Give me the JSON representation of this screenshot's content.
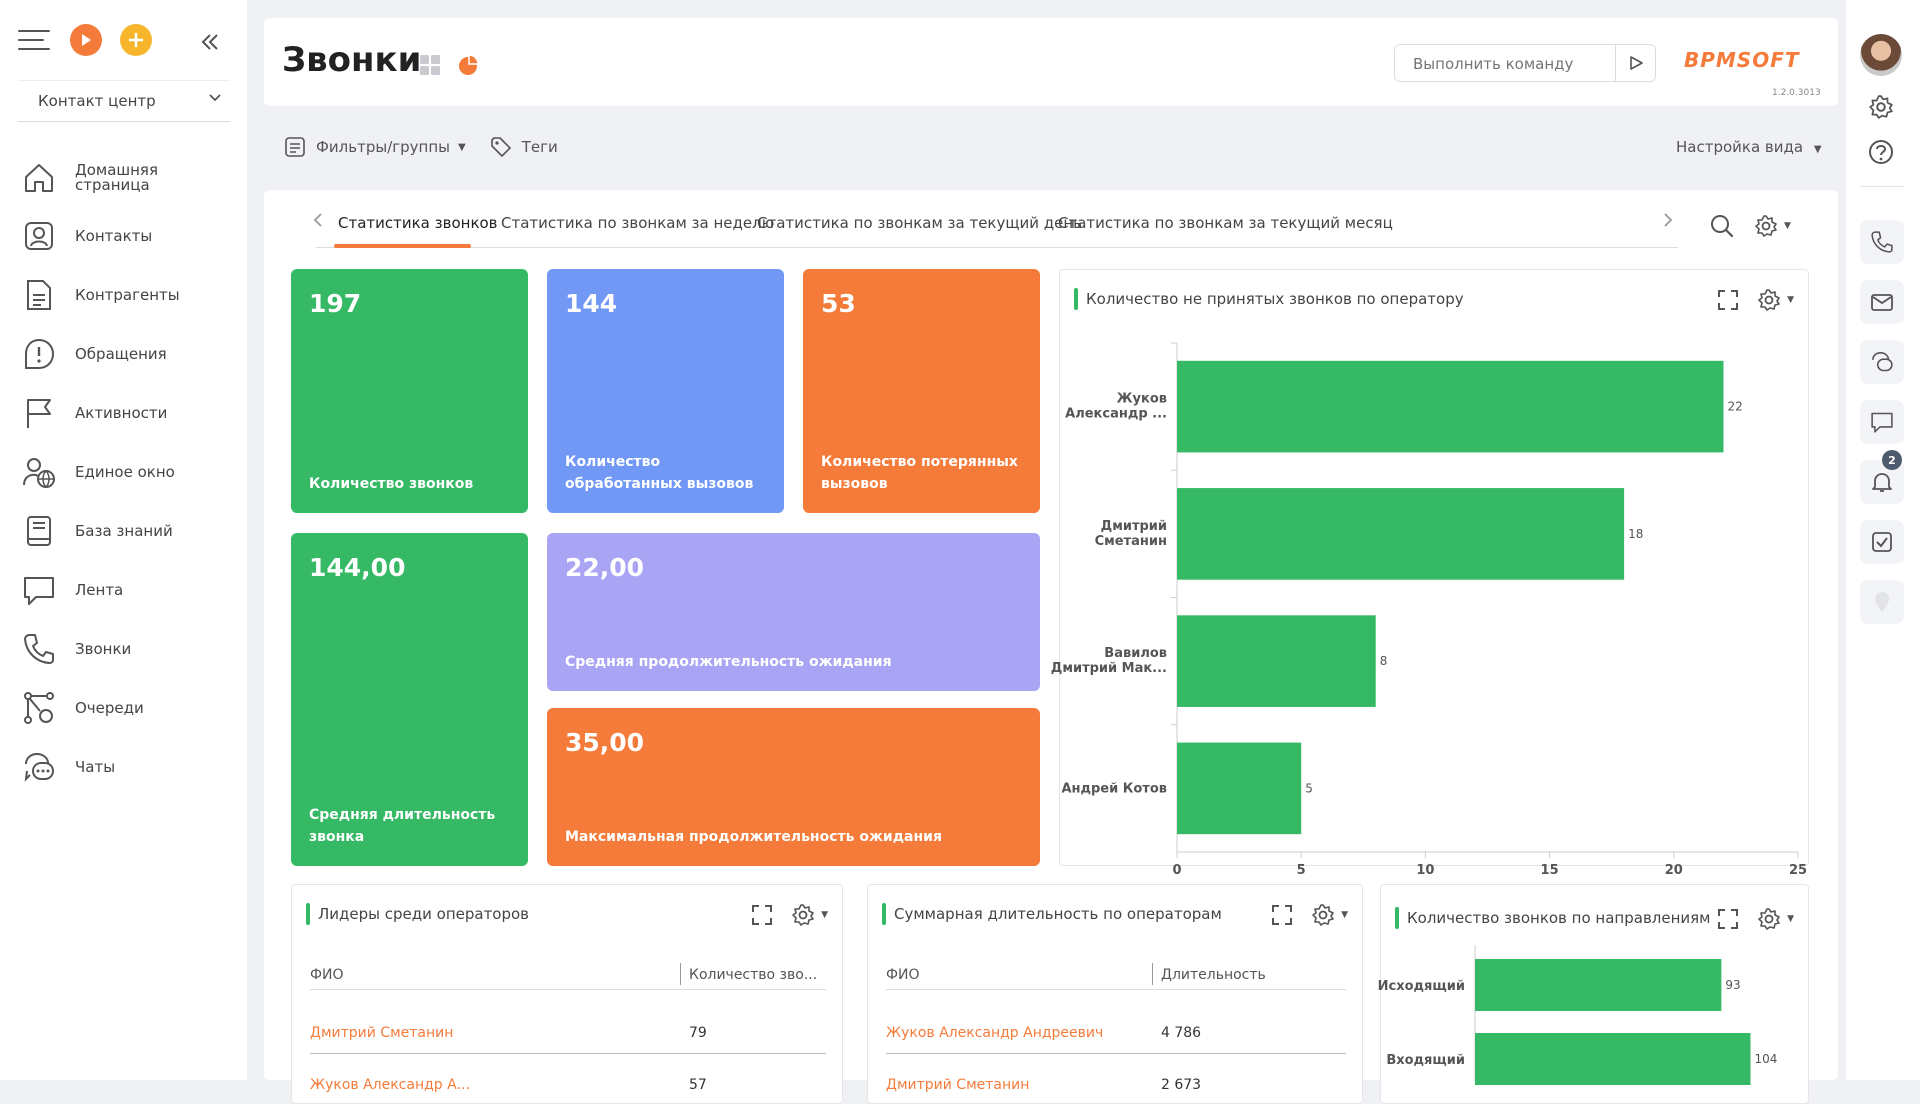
{
  "sidebar": {
    "workspace": "Контакт центр",
    "items": [
      {
        "label": "Домашняя\nстраница",
        "icon": "home-icon"
      },
      {
        "label": "Контакты",
        "icon": "contact-icon"
      },
      {
        "label": "Контрагенты",
        "icon": "document-icon"
      },
      {
        "label": "Обращения",
        "icon": "alert-icon"
      },
      {
        "label": "Активности",
        "icon": "flag-icon"
      },
      {
        "label": "Единое окно",
        "icon": "agent-globe-icon"
      },
      {
        "label": "База знаний",
        "icon": "book-icon"
      },
      {
        "label": "Лента",
        "icon": "chat-bubble-icon"
      },
      {
        "label": "Звонки",
        "icon": "phone-icon"
      },
      {
        "label": "Очереди",
        "icon": "queue-icon"
      },
      {
        "label": "Чаты",
        "icon": "chats-icon"
      }
    ]
  },
  "header": {
    "title": "Звонки",
    "command_placeholder": "Выполнить команду",
    "logo": "BPMSOFT",
    "version": "1.2.0.3013"
  },
  "filters": {
    "filters_label": "Фильтры/группы",
    "tags_label": "Теги",
    "view_setup": "Настройка вида"
  },
  "tabs": [
    "Статистика звонков",
    "Статистика по звонкам за неделю",
    "Статистика по звонкам за текущий день",
    "Статистика по звонкам за текущий месяц"
  ],
  "tiles": [
    {
      "value": "197",
      "caption": "Количество звонков",
      "color": "#35b965"
    },
    {
      "value": "144",
      "caption": "Количество обработанных вызовов",
      "color": "#7298f5"
    },
    {
      "value": "53",
      "caption": "Количество потерянных вызовов",
      "color": "#f47b3a"
    },
    {
      "value": "144,00",
      "caption": "Средняя длительность звонка",
      "color": "#35b965"
    },
    {
      "value": "22,00",
      "caption": "Средняя продолжительность ожидания",
      "color": "#aaa4f4"
    },
    {
      "value": "35,00",
      "caption": "Максимальная продолжительность ожидания",
      "color": "#f47b3a"
    }
  ],
  "missed_chart": {
    "title": "Количество не принятых звонков по оператору"
  },
  "leaders": {
    "title": "Лидеры среди операторов",
    "columns": [
      "ФИО",
      "Количество зво..."
    ],
    "rows": [
      {
        "name": "Дмитрий Сметанин",
        "value": "79"
      },
      {
        "name": "Жуков Александр А...",
        "value": "57"
      }
    ]
  },
  "duration": {
    "title": "Суммарная длительность по операторам",
    "columns": [
      "ФИО",
      "Длительность"
    ],
    "rows": [
      {
        "name": "Жуков Александр Андреевич",
        "value": "4 786"
      },
      {
        "name": "Дмитрий Сметанин",
        "value": "2 673"
      }
    ]
  },
  "direction_chart": {
    "title": "Количество звонков по направлениям"
  },
  "rail": {
    "notification_count": "2"
  },
  "colors": {
    "accent": "#f47b3a",
    "green": "#35b965",
    "blue": "#7298f5",
    "lavender": "#aaa4f4"
  },
  "chart_data": [
    {
      "type": "bar",
      "orientation": "horizontal",
      "title": "Количество не принятых звонков по оператору",
      "categories": [
        "Жуков\nАлександр ...",
        "Дмитрий\nСметанин",
        "Вавилов\nДмитрий Мак...",
        "Андрей Котов"
      ],
      "values": [
        22,
        18,
        8,
        5
      ],
      "xlim": [
        0,
        25
      ],
      "xticks": [
        0,
        5,
        10,
        15,
        20,
        25
      ],
      "grid": false,
      "color": "#35b965"
    },
    {
      "type": "bar",
      "orientation": "horizontal",
      "title": "Количество звонков по направлениям",
      "categories": [
        "Исходящий",
        "Входящий"
      ],
      "values": [
        93,
        104
      ],
      "grid": false,
      "color": "#35b965"
    }
  ]
}
